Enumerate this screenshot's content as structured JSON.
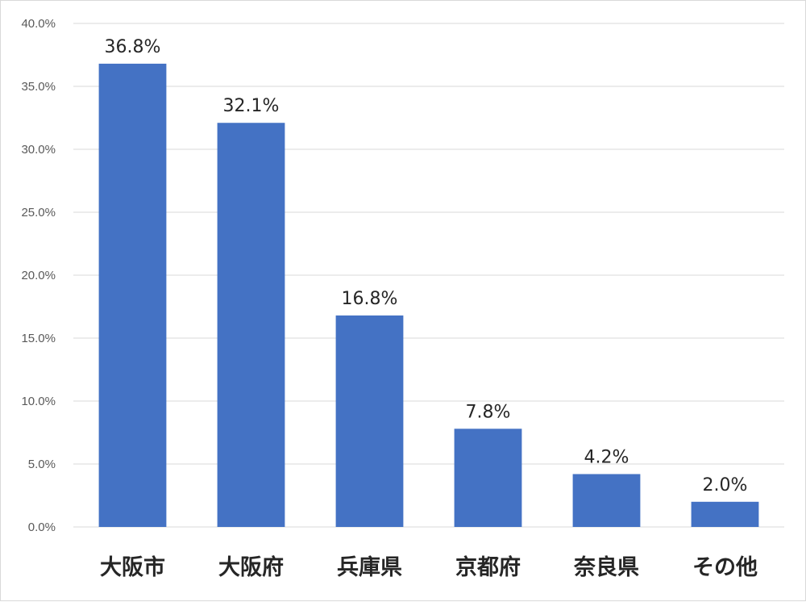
{
  "chart_data": {
    "type": "bar",
    "categories": [
      "大阪市",
      "大阪府",
      "兵庫県",
      "京都府",
      "奈良県",
      "その他"
    ],
    "values": [
      36.8,
      32.1,
      16.8,
      7.8,
      4.2,
      2.0
    ],
    "value_labels": [
      "36.8%",
      "32.1%",
      "16.8%",
      "7.8%",
      "4.2%",
      "2.0%"
    ],
    "y_ticks": [
      "0.0%",
      "5.0%",
      "10.0%",
      "15.0%",
      "20.0%",
      "25.0%",
      "30.0%",
      "35.0%",
      "40.0%"
    ],
    "ylim": [
      0,
      40
    ],
    "grid": true,
    "bar_color": "#4472C4",
    "title": "",
    "xlabel": "",
    "ylabel": ""
  }
}
